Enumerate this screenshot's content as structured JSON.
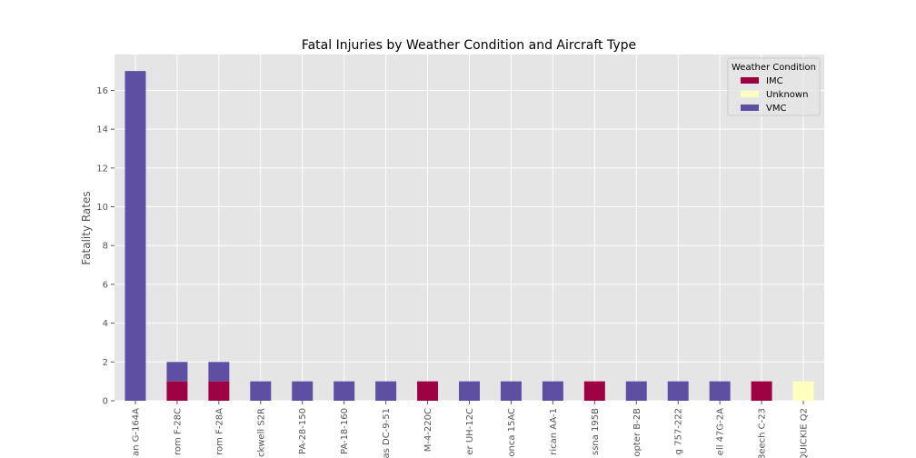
{
  "chart_data": {
    "type": "bar",
    "stacked": true,
    "title": "Fatal Injuries by Weather Condition and Aircraft Type",
    "xlabel": "",
    "ylabel": "Fatality Rates",
    "ylim": [
      0,
      17.85
    ],
    "yticks": [
      0,
      2,
      4,
      6,
      8,
      10,
      12,
      14,
      16
    ],
    "grid": true,
    "legend": {
      "title": "Weather Condition",
      "placement": "top-right"
    },
    "categories": [
      "an  G-164A",
      "rom  F-28C",
      "rom  F-28A",
      "ckwell  S2R",
      "PA-28-150",
      "PA-18-160",
      "as  DC-9-51",
      "M-4-220C",
      "er  UH-12C",
      "onca  15AC",
      "rican  AA-1",
      "ssna  195B",
      "opter  B-2B",
      "g  757-222",
      "ell  47G-2A",
      "Beech  C-23",
      "QUICKIE Q2"
    ],
    "series": [
      {
        "name": "IMC",
        "color": "#9e0142",
        "values": [
          0,
          1,
          1,
          0,
          0,
          0,
          0,
          1,
          0,
          0,
          0,
          1,
          0,
          0,
          0,
          1,
          0
        ]
      },
      {
        "name": "Unknown",
        "color": "#ffffbf",
        "values": [
          0,
          0,
          0,
          0,
          0,
          0,
          0,
          0,
          0,
          0,
          0,
          0,
          0,
          0,
          0,
          0,
          1
        ]
      },
      {
        "name": "VMC",
        "color": "#5e4fa2",
        "values": [
          17,
          1,
          1,
          1,
          1,
          1,
          1,
          0,
          1,
          1,
          1,
          0,
          1,
          1,
          1,
          0,
          0
        ]
      }
    ]
  }
}
